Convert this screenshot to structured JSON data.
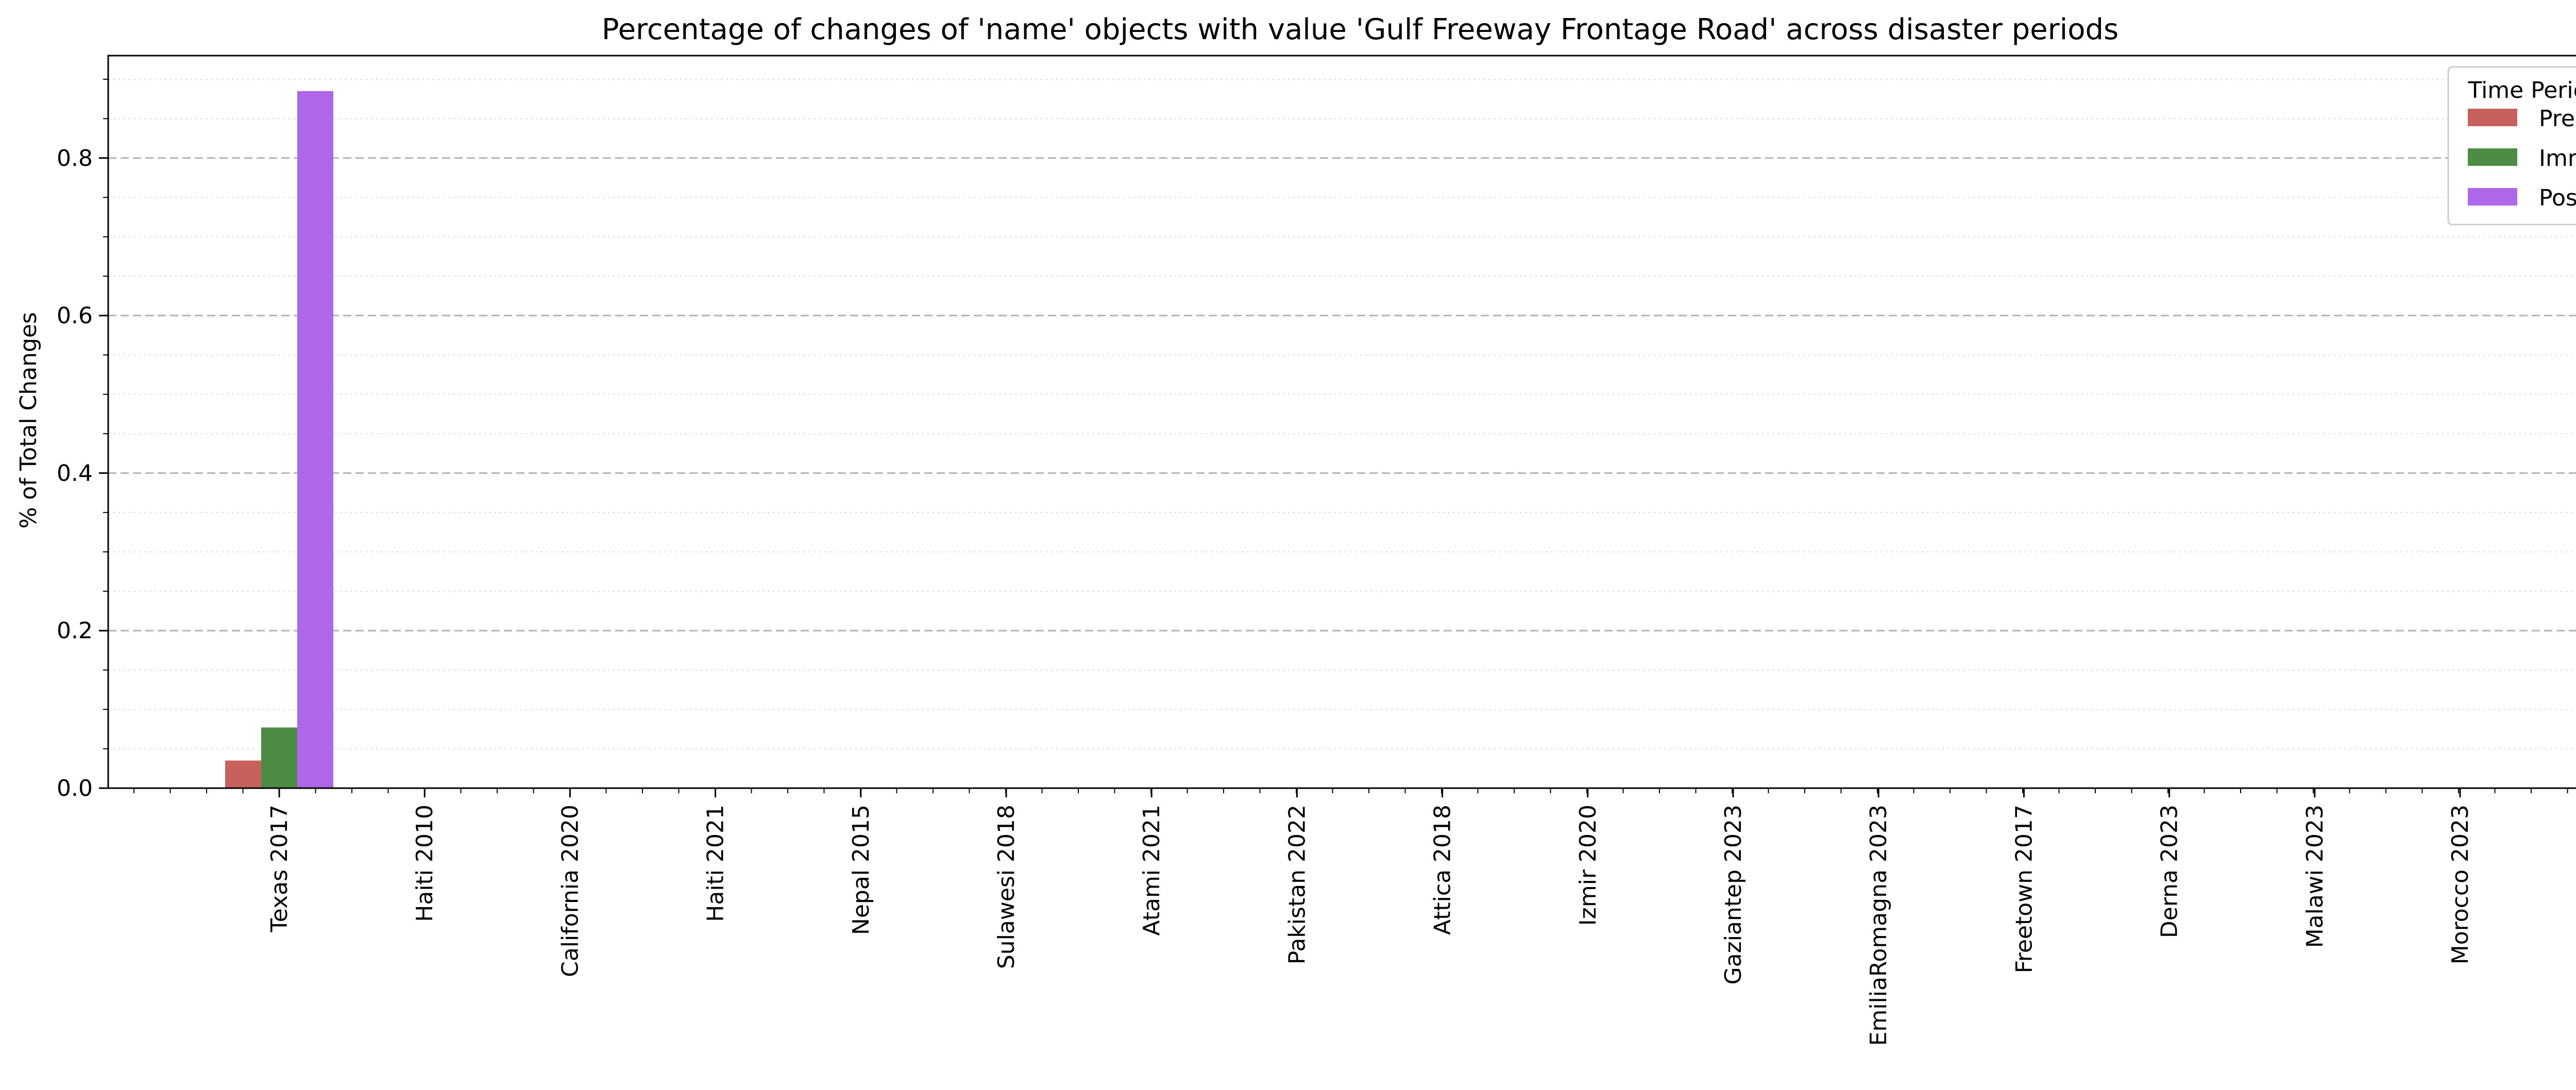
{
  "chart_data": {
    "type": "bar",
    "title": "Percentage of changes of 'name' objects with value 'Gulf Freeway Frontage Road' across disaster periods",
    "xlabel": "",
    "ylabel": "% of Total Changes",
    "ylim": [
      0,
      0.93
    ],
    "yticks": [
      0.0,
      0.2,
      0.4,
      0.6,
      0.8
    ],
    "ytick_labels": [
      "0.0",
      "0.2",
      "0.4",
      "0.6",
      "0.8"
    ],
    "grid": "y-major-dashed-minor-dotted",
    "categories": [
      "Texas 2017",
      "Haiti 2010",
      "California 2020",
      "Haiti 2021",
      "Nepal 2015",
      "Sulawesi 2018",
      "Atami 2021",
      "Pakistan 2022",
      "Attica 2018",
      "Izmir 2020",
      "Gaziantep 2023",
      "EmiliaRomagna 2023",
      "Freetown 2017",
      "Derna 2023",
      "Malawi 2023",
      "Morocco 2023"
    ],
    "series": [
      {
        "name": "Pre",
        "color": "#c8605d",
        "values": [
          0.035,
          0,
          0,
          0,
          0,
          0,
          0,
          0,
          0,
          0,
          0,
          0,
          0,
          0,
          0,
          0
        ]
      },
      {
        "name": "Imm",
        "color": "#4d8c45",
        "values": [
          0.077,
          0,
          0,
          0,
          0,
          0,
          0,
          0,
          0,
          0,
          0,
          0,
          0,
          0,
          0,
          0
        ]
      },
      {
        "name": "Post",
        "color": "#ae67e8",
        "values": [
          0.885,
          0,
          0,
          0,
          0,
          0,
          0,
          0,
          0,
          0,
          0,
          0,
          0,
          0,
          0,
          0
        ]
      }
    ],
    "legend": {
      "title": "Time Period",
      "placement": "top-right"
    }
  }
}
